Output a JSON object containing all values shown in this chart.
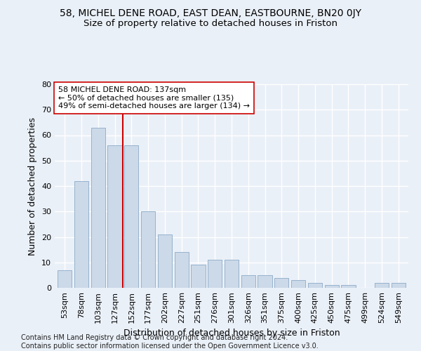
{
  "title": "58, MICHEL DENE ROAD, EAST DEAN, EASTBOURNE, BN20 0JY",
  "subtitle": "Size of property relative to detached houses in Friston",
  "xlabel": "Distribution of detached houses by size in Friston",
  "ylabel": "Number of detached properties",
  "bar_color": "#ccd9e8",
  "bar_edge_color": "#8aaac8",
  "background_color": "#eaf0f8",
  "grid_color": "#ffffff",
  "categories": [
    "53sqm",
    "78sqm",
    "103sqm",
    "127sqm",
    "152sqm",
    "177sqm",
    "202sqm",
    "227sqm",
    "251sqm",
    "276sqm",
    "301sqm",
    "326sqm",
    "351sqm",
    "375sqm",
    "400sqm",
    "425sqm",
    "450sqm",
    "475sqm",
    "499sqm",
    "524sqm",
    "549sqm"
  ],
  "values": [
    7,
    42,
    63,
    56,
    56,
    30,
    21,
    14,
    9,
    11,
    11,
    5,
    5,
    4,
    3,
    2,
    1,
    1,
    0,
    2,
    2
  ],
  "vline_x": 3.5,
  "vline_color": "#cc0000",
  "annotation_line1": "58 MICHEL DENE ROAD: 137sqm",
  "annotation_line2": "← 50% of detached houses are smaller (135)",
  "annotation_line3": "49% of semi-detached houses are larger (134) →",
  "annotation_box_color": "#ffffff",
  "annotation_box_edge": "#cc0000",
  "ylim": [
    0,
    80
  ],
  "yticks": [
    0,
    10,
    20,
    30,
    40,
    50,
    60,
    70,
    80
  ],
  "footer": "Contains HM Land Registry data © Crown copyright and database right 2024.\nContains public sector information licensed under the Open Government Licence v3.0.",
  "title_fontsize": 10,
  "subtitle_fontsize": 9.5,
  "axis_label_fontsize": 9,
  "tick_fontsize": 8,
  "annotation_fontsize": 8
}
